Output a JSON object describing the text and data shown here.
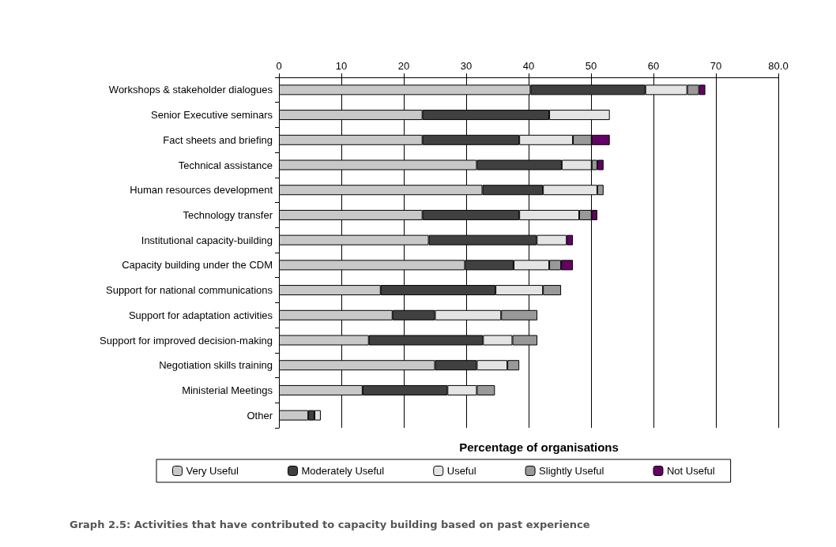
{
  "chart_data": {
    "type": "bar",
    "orientation": "horizontal",
    "stacked": true,
    "categories": [
      "Workshops & stakeholder dialogues",
      "Senior Executive seminars",
      "Fact sheets and briefing",
      "Technical assistance",
      "Human resources development",
      "Technology transfer",
      "Institutional capacity-building",
      "Capacity building under the CDM",
      "Support for national communications",
      "Support for adaptation activities",
      "Support for improved decision-making",
      "Negotiation skills training",
      "Ministerial Meetings",
      "Other"
    ],
    "series": [
      {
        "name": "Very Useful",
        "color": "#c8c8c8",
        "values": [
          40.3,
          23.0,
          23.0,
          31.7,
          32.6,
          23.0,
          24.0,
          29.8,
          16.3,
          18.2,
          14.4,
          25.0,
          13.4,
          4.7
        ]
      },
      {
        "name": "Moderately Useful",
        "color": "#404040",
        "values": [
          18.4,
          20.3,
          15.5,
          13.6,
          9.7,
          15.5,
          17.3,
          7.8,
          18.4,
          6.8,
          18.3,
          6.7,
          13.6,
          1.0
        ]
      },
      {
        "name": "Useful",
        "color": "#e4e4e4",
        "values": [
          6.7,
          9.7,
          8.6,
          4.8,
          8.7,
          9.6,
          4.8,
          5.7,
          7.6,
          10.6,
          4.7,
          4.9,
          4.7,
          1.0
        ]
      },
      {
        "name": "Slightly Useful",
        "color": "#999999",
        "values": [
          1.9,
          null,
          3.0,
          0.9,
          1.0,
          2.0,
          null,
          1.9,
          2.9,
          5.8,
          4.0,
          1.9,
          2.9,
          null
        ]
      },
      {
        "name": "Not Useful",
        "color": "#660066",
        "values": [
          1.0,
          null,
          2.9,
          1.0,
          null,
          0.9,
          1.0,
          1.9,
          null,
          null,
          null,
          null,
          null,
          null
        ]
      }
    ],
    "xlim": [
      0,
      80
    ],
    "xticks": [
      0,
      10,
      20,
      30,
      40,
      50,
      60,
      70,
      {
        "value": 80,
        "label": "80.0"
      }
    ],
    "xlabel": "Percentage of organisations",
    "grid": "x",
    "legend": "bottom",
    "annotations": [
      "Graph 2.5: Activities that have contributed to capacity building based on past experience"
    ]
  }
}
